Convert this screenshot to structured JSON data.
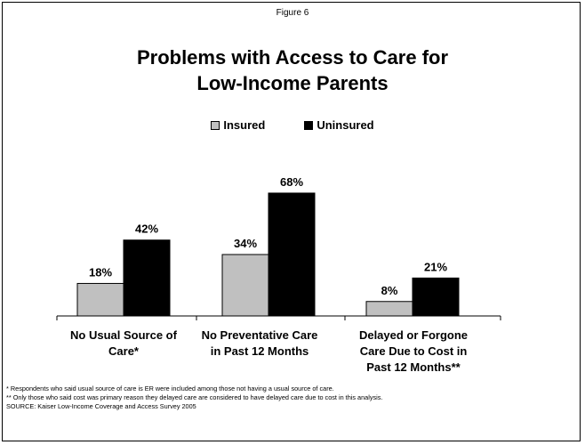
{
  "figure_label": "Figure 6",
  "title_lines": [
    "Problems with Access to Care for",
    "Low-Income Parents"
  ],
  "legend": [
    {
      "name": "Insured",
      "color": "#c0c0c0"
    },
    {
      "name": "Uninsured",
      "color": "#000000"
    }
  ],
  "chart_data": {
    "type": "bar",
    "title": "Problems with Access to Care for Low-Income Parents",
    "categories": [
      [
        "No Usual Source of",
        "Care*"
      ],
      [
        "No Preventative Care",
        "in Past 12 Months"
      ],
      [
        "Delayed or Forgone",
        "Care Due to Cost in",
        "Past 12 Months**"
      ]
    ],
    "series": [
      {
        "name": "Insured",
        "values": [
          18,
          34,
          8
        ],
        "labels": [
          "18%",
          "34%",
          "8%"
        ],
        "color": "#c0c0c0"
      },
      {
        "name": "Uninsured",
        "values": [
          42,
          68,
          21
        ],
        "labels": [
          "42%",
          "68%",
          "21%"
        ],
        "color": "#000000"
      }
    ],
    "ylim": [
      0,
      100
    ],
    "grid": false,
    "legend_position": "top-center"
  },
  "notes": [
    "* Respondents who said usual source of care is ER were included among those not having a usual source of care.",
    "** Only those who said cost was primary reason they delayed care are considered to have delayed care due to cost in this analysis.",
    "SOURCE: Kaiser Low-Income Coverage and Access Survey 2005"
  ]
}
